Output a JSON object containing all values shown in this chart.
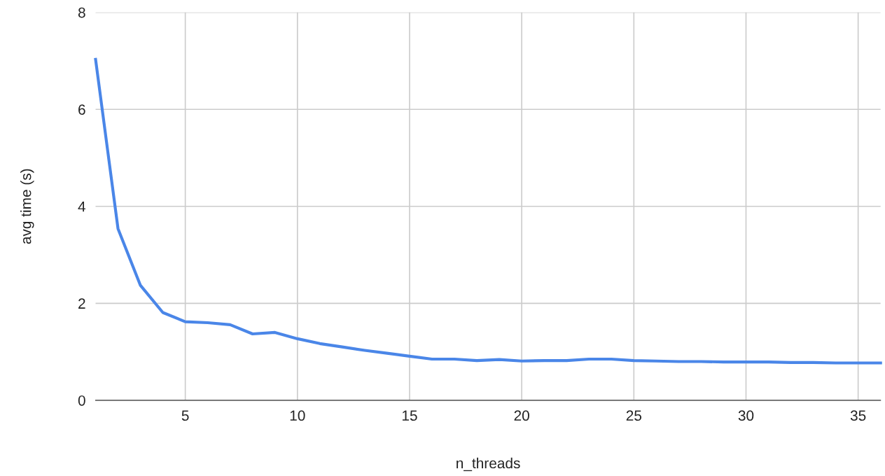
{
  "chart_data": {
    "type": "line",
    "xlabel": "n_threads",
    "ylabel": "avg time (s)",
    "x": [
      1,
      2,
      3,
      4,
      5,
      6,
      7,
      8,
      9,
      10,
      11,
      12,
      13,
      14,
      15,
      16,
      17,
      18,
      19,
      20,
      21,
      22,
      23,
      24,
      25,
      26,
      27,
      28,
      29,
      30,
      31,
      32,
      33,
      34,
      35,
      36
    ],
    "series": [
      {
        "color": "#4a86e8",
        "values": [
          7.03,
          3.54,
          2.37,
          1.81,
          1.62,
          1.6,
          1.56,
          1.37,
          1.4,
          1.27,
          1.17,
          1.1,
          1.03,
          0.97,
          0.91,
          0.85,
          0.85,
          0.82,
          0.84,
          0.81,
          0.82,
          0.82,
          0.85,
          0.85,
          0.82,
          0.81,
          0.8,
          0.8,
          0.79,
          0.79,
          0.79,
          0.78,
          0.78,
          0.77,
          0.77,
          0.77
        ]
      }
    ],
    "xlim": [
      1,
      36
    ],
    "ylim": [
      0,
      8
    ],
    "xticks": [
      5,
      10,
      15,
      20,
      25,
      30,
      35
    ],
    "yticks": [
      0,
      2,
      4,
      6,
      8
    ],
    "grid": true,
    "marker": "none",
    "line_style": "solid"
  }
}
